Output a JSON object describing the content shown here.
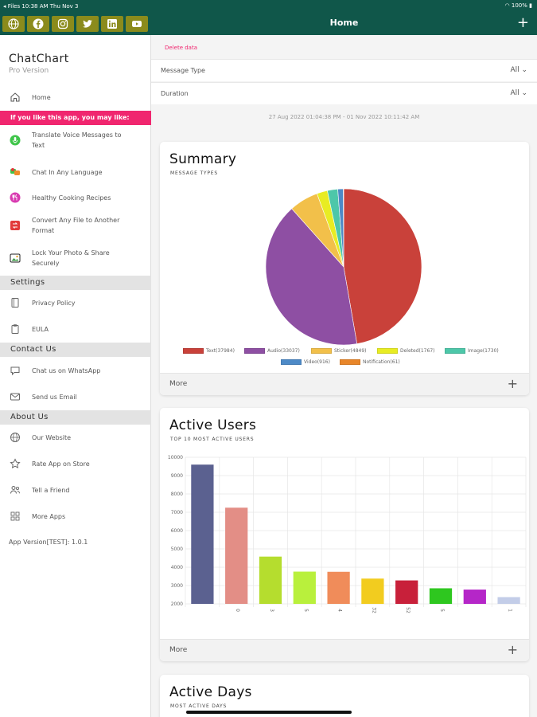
{
  "status": {
    "left": "◂ Files   10:38 AM   Thu Nov 3",
    "right": "100%"
  },
  "social": [
    {
      "icon": "globe-icon"
    },
    {
      "icon": "facebook-icon"
    },
    {
      "icon": "instagram-icon"
    },
    {
      "icon": "twitter-icon"
    },
    {
      "icon": "linkedin-icon"
    },
    {
      "icon": "youtube-icon"
    }
  ],
  "brand": {
    "title": "ChatChart",
    "subtitle": "Pro Version"
  },
  "nav": {
    "home": "Home",
    "promo": "If you like this app, you may like:",
    "promo_items": [
      {
        "label": "Translate Voice Messages to Text",
        "icon": "voice-app-icon"
      },
      {
        "label": "Chat In Any Language",
        "icon": "language-app-icon"
      },
      {
        "label": "Healthy Cooking Recipes",
        "icon": "recipe-app-icon"
      },
      {
        "label": "Convert Any File to Another Format",
        "icon": "converter-app-icon"
      },
      {
        "label": "Lock Your Photo & Share Securely",
        "icon": "photo-lock-app-icon"
      }
    ],
    "settings_head": "Settings",
    "privacy": "Privacy Policy",
    "eula": "EULA",
    "contact_head": "Contact Us",
    "whatsapp": "Chat us on WhatsApp",
    "email": "Send us Email",
    "about_head": "About Us",
    "website": "Our Website",
    "rate": "Rate App on Store",
    "tell": "Tell a Friend",
    "more_apps": "More Apps",
    "app_version": "App Version[TEST]: 1.0.1"
  },
  "header": {
    "title": "Home",
    "add": "+"
  },
  "filters": {
    "delete": "Delete data",
    "message_type_label": "Message Type",
    "message_type_value": "All ⌄",
    "duration_label": "Duration",
    "duration_value": "All ⌄",
    "date_range": "27 Aug 2022 01:04:38 PM - 01 Nov 2022 10:11:42 AM"
  },
  "summary": {
    "title": "Summary",
    "subtitle": "MESSAGE TYPES",
    "more": "More",
    "plus": "+"
  },
  "active_users": {
    "title": "Active Users",
    "subtitle": "TOP 10 MOST ACTIVE USERS",
    "more": "More",
    "plus": "+"
  },
  "active_days": {
    "title": "Active Days",
    "subtitle": "MOST ACTIVE DAYS"
  },
  "chart_data": [
    {
      "type": "pie",
      "title": "Summary",
      "subtitle": "MESSAGE TYPES",
      "slices": [
        {
          "label": "Text(37984)",
          "value": 37984,
          "color": "#c9413a"
        },
        {
          "label": "Audio(33037)",
          "value": 33037,
          "color": "#8e4fa3"
        },
        {
          "label": "Sticker(4849)",
          "value": 4849,
          "color": "#f2c04a"
        },
        {
          "label": "Deleted(1767)",
          "value": 1767,
          "color": "#e8ec23"
        },
        {
          "label": "Image(1730)",
          "value": 1730,
          "color": "#4dc7a9"
        },
        {
          "label": "Video(916)",
          "value": 916,
          "color": "#4d8ac7"
        },
        {
          "label": "Notification(61)",
          "value": 61,
          "color": "#e8862a"
        }
      ]
    },
    {
      "type": "bar",
      "title": "Active Users",
      "subtitle": "TOP 10 MOST ACTIVE USERS",
      "categories": [
        "",
        "0",
        "3",
        "5",
        "4",
        "32",
        "52",
        "5",
        "",
        "1"
      ],
      "values": [
        9600,
        7250,
        4580,
        3760,
        3750,
        3380,
        3280,
        2850,
        2780,
        2370
      ],
      "colors": [
        "#5b6190",
        "#e38e86",
        "#b5dd2e",
        "#b9f03c",
        "#f08c5a",
        "#f2cc1f",
        "#c8203a",
        "#2ec71f",
        "#b526c8",
        "#c3cde8"
      ],
      "yticks": [
        2000,
        3000,
        4000,
        5000,
        6000,
        7000,
        8000,
        9000,
        10000
      ],
      "ylim": [
        2000,
        10000
      ]
    }
  ]
}
